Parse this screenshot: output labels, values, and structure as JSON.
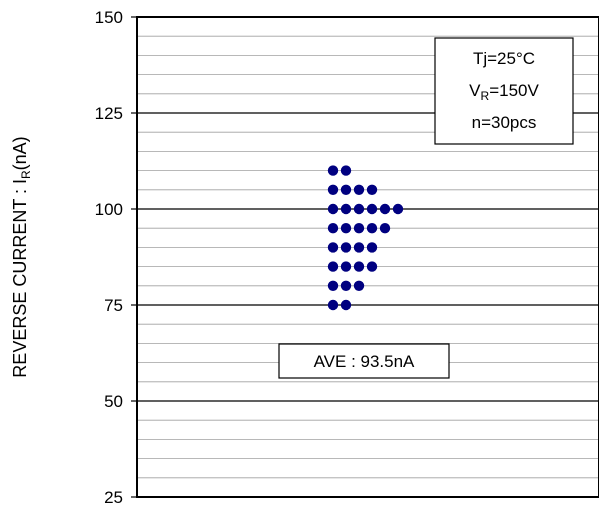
{
  "chart_data": {
    "type": "scatter",
    "ylabel": "REVERSE CURRENT : I",
    "ylabel_subscript": "R",
    "ylabel_unit": "(nA)",
    "ylim": [
      25,
      150
    ],
    "yticks": [
      25,
      50,
      75,
      100,
      125,
      150
    ],
    "minor_grid_step": 5,
    "major_grid_step": 25,
    "grid": true,
    "point_color": "#000080",
    "points_by_value": [
      {
        "value": 75,
        "count": 2
      },
      {
        "value": 80,
        "count": 3
      },
      {
        "value": 85,
        "count": 4
      },
      {
        "value": 90,
        "count": 4
      },
      {
        "value": 95,
        "count": 5
      },
      {
        "value": 100,
        "count": 6
      },
      {
        "value": 105,
        "count": 4
      },
      {
        "value": 110,
        "count": 2
      }
    ],
    "conditions": {
      "line1": "Tj=25°C",
      "line2_prefix": "V",
      "line2_sub": "R",
      "line2_suffix": "=150V",
      "line3": "n=30pcs"
    },
    "average_label": "AVE : 93.5nA",
    "average_value": 93.5
  }
}
